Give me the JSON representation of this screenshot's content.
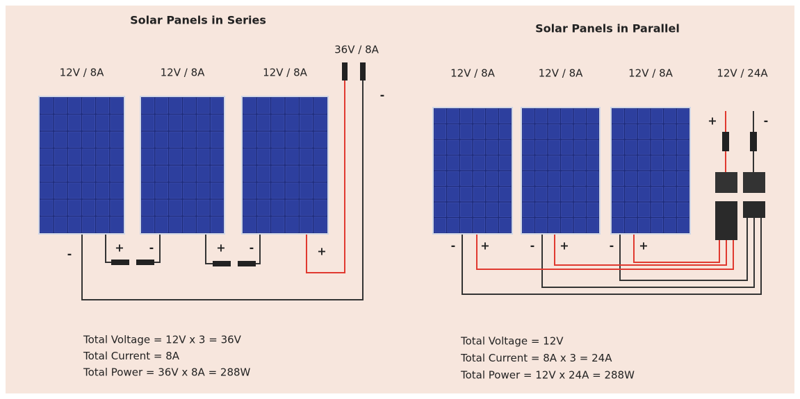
{
  "plus": "+",
  "minus": "-",
  "series": {
    "title": "Solar Panels in Series",
    "panels": [
      "12V / 8A",
      "12V / 8A",
      "12V / 8A"
    ],
    "output": "36V / 8A",
    "totals": [
      "Total Voltage = 12V x 3 = 36V",
      "Total Current = 8A",
      "Total Power = 36V x 8A = 288W"
    ]
  },
  "parallel": {
    "title": "Solar Panels in Parallel",
    "panels": [
      "12V / 8A",
      "12V / 8A",
      "12V / 8A"
    ],
    "output": "12V / 24A",
    "totals": [
      "Total Voltage = 12V",
      "Total Current = 8A x 3 = 24A",
      "Total Power = 12V x 24A = 288W"
    ]
  }
}
